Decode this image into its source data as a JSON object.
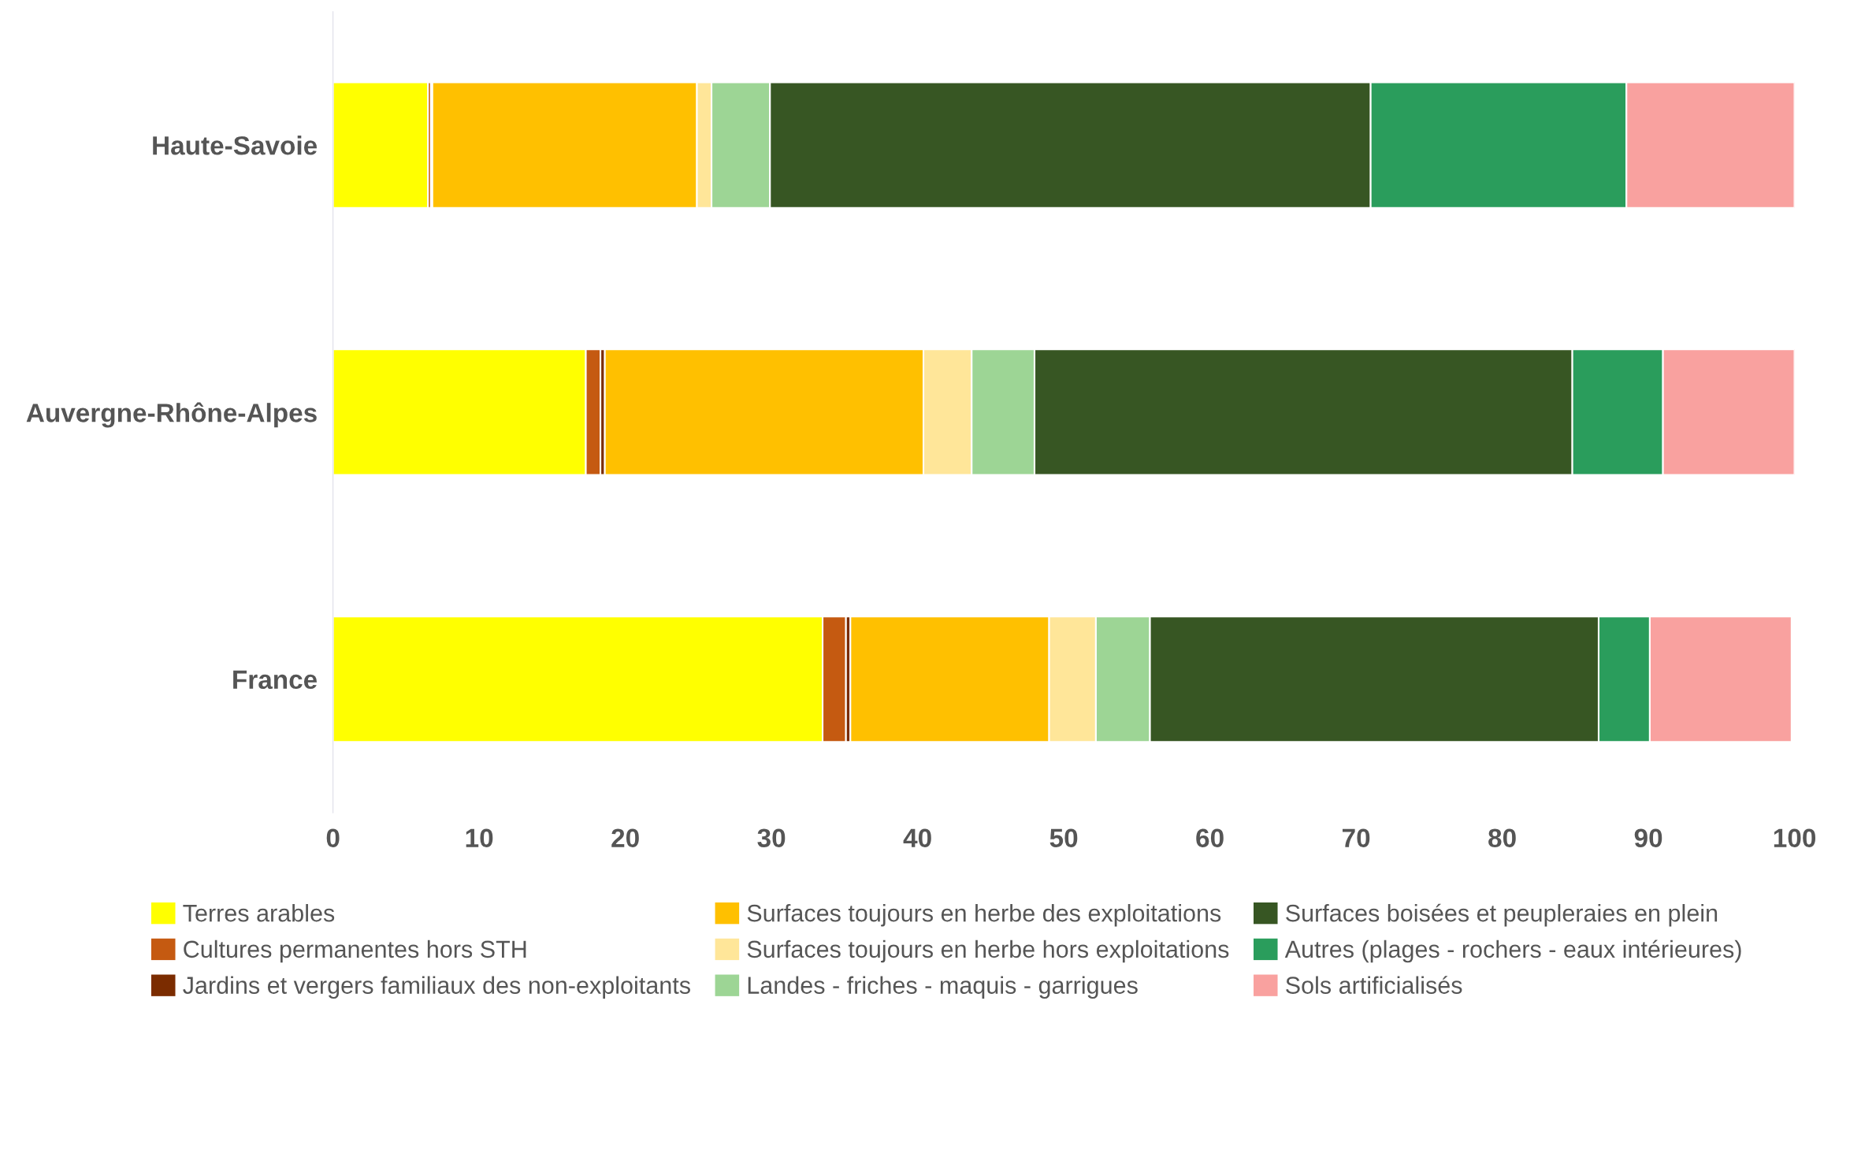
{
  "chart_data": {
    "type": "bar",
    "orientation": "horizontal",
    "stacked": true,
    "categories": [
      "Haute-Savoie",
      "Auvergne-Rhône-Alpes",
      "France"
    ],
    "series": [
      {
        "name": "Terres arables",
        "color": "#ffff00",
        "values": [
          6.5,
          17.3,
          33.5
        ]
      },
      {
        "name": "Cultures permanentes hors STH",
        "color": "#c55a11",
        "values": [
          0.2,
          1.0,
          1.6
        ]
      },
      {
        "name": "Jardins et vergers familiaux des non-exploitants",
        "color": "#7b2c00",
        "values": [
          0.1,
          0.3,
          0.3
        ]
      },
      {
        "name": "Surfaces toujours en herbe des exploitations",
        "color": "#ffc000",
        "values": [
          18.1,
          21.8,
          13.6
        ]
      },
      {
        "name": "Surfaces toujours en herbe hors exploitations",
        "color": "#ffe699",
        "values": [
          1.0,
          3.3,
          3.2
        ]
      },
      {
        "name": "Landes - friches - maquis - garrigues",
        "color": "#9dd595",
        "values": [
          4.0,
          4.3,
          3.7
        ]
      },
      {
        "name": "Surfaces boisées et peupleraies en plein",
        "color": "#375623",
        "values": [
          41.1,
          36.8,
          30.7
        ]
      },
      {
        "name": "Autres (plages - rochers - eaux intérieures)",
        "color": "#2a9d5c",
        "values": [
          17.5,
          6.2,
          3.5
        ]
      },
      {
        "name": "Sols artificialisés",
        "color": "#f9a19f",
        "values": [
          11.5,
          9.0,
          9.7
        ]
      }
    ],
    "xlim": [
      0,
      100
    ],
    "xticks": [
      0,
      10,
      20,
      30,
      40,
      50,
      60,
      70,
      80,
      90,
      100
    ],
    "grid": false,
    "legend": "bottom"
  }
}
